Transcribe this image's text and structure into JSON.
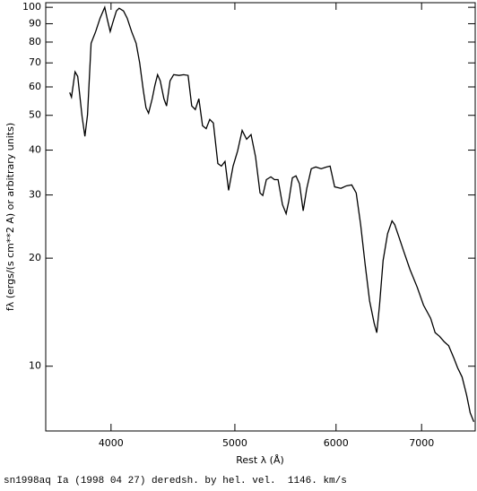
{
  "chart_data": {
    "type": "line",
    "x_label": "Rest λ (Å)",
    "y_label": "fλ (ergs/(s cm**2 A) or arbitrary units)",
    "caption": "sn1998aq Ia (1998 04 27) deredsh. by hel. vel.  1146. km/s",
    "log_x": true,
    "log_y": true,
    "color": "#000000",
    "xlim": [
      3556,
      7710
    ],
    "ylim": [
      6.6,
      103
    ],
    "xticks": [
      4000,
      5000,
      6000,
      7000
    ],
    "yticks": [
      10,
      20,
      30,
      40,
      50,
      60,
      70,
      80,
      90,
      100
    ],
    "series": [
      {
        "name": "sn1998aq",
        "x": [
          3713,
          3725,
          3749,
          3767,
          3797,
          3816,
          3834,
          3859,
          3891,
          3922,
          3955,
          3974,
          3994,
          4013,
          4039,
          4059,
          4091,
          4118,
          4151,
          4185,
          4212,
          4239,
          4260,
          4280,
          4308,
          4329,
          4350,
          4371,
          4400,
          4421,
          4449,
          4478,
          4522,
          4559,
          4596,
          4626,
          4656,
          4686,
          4717,
          4748,
          4779,
          4810,
          4849,
          4880,
          4912,
          4944,
          4984,
          5025,
          5066,
          5107,
          5148,
          5190,
          5232,
          5258,
          5292,
          5335,
          5370,
          5405,
          5448,
          5484,
          5510,
          5546,
          5582,
          5618,
          5655,
          5692,
          5738,
          5785,
          5841,
          5898,
          5936,
          5985,
          6053,
          6112,
          6172,
          6222,
          6272,
          6323,
          6374,
          6426,
          6457,
          6489,
          6531,
          6584,
          6637,
          6669,
          6723,
          6778,
          6855,
          6945,
          7024,
          7115,
          7173,
          7232,
          7291,
          7350,
          7422,
          7470,
          7530,
          7591,
          7641,
          7691
        ],
        "values": [
          57.9,
          56.2,
          66.1,
          64.2,
          49.5,
          43.7,
          50.1,
          79.4,
          85.6,
          93.3,
          100,
          92.3,
          85.6,
          90.7,
          97.7,
          99.4,
          97.7,
          93.3,
          85.6,
          79.4,
          70.0,
          58.9,
          52.5,
          50.7,
          55.6,
          60.6,
          64.9,
          62.4,
          55.6,
          53.1,
          62.4,
          64.9,
          64.6,
          64.9,
          64.6,
          53.1,
          51.9,
          55.6,
          46.8,
          45.9,
          48.7,
          47.6,
          36.7,
          36.1,
          37.2,
          30.9,
          36.1,
          39.8,
          45.4,
          42.9,
          44.2,
          38.3,
          30.4,
          29.9,
          33.1,
          33.7,
          33.1,
          33.1,
          28.2,
          26.6,
          28.8,
          33.5,
          33.9,
          32.2,
          27.1,
          31.3,
          35.5,
          35.9,
          35.5,
          35.9,
          36.1,
          31.6,
          31.3,
          31.8,
          32.0,
          30.4,
          24.8,
          19.2,
          15.2,
          13.2,
          12.4,
          14.8,
          19.7,
          23.4,
          25.4,
          24.8,
          22.8,
          20.9,
          18.6,
          16.6,
          14.8,
          13.6,
          12.4,
          12.1,
          11.7,
          11.4,
          10.5,
          9.89,
          9.33,
          8.32,
          7.41,
          7.0
        ]
      }
    ]
  }
}
